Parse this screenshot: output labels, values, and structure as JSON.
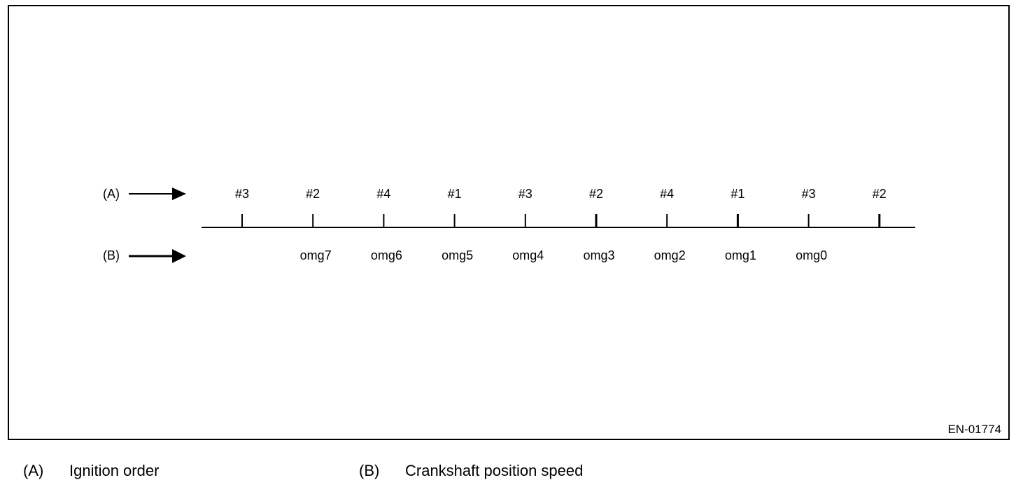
{
  "figure_id": "EN-01774",
  "row_a": {
    "key": "(A)",
    "ignition_cylinders": [
      "#3",
      "#2",
      "#4",
      "#1",
      "#3",
      "#2",
      "#4",
      "#1",
      "#3",
      "#2"
    ]
  },
  "row_b": {
    "key": "(B)",
    "speed_labels": [
      "omg7",
      "omg6",
      "omg5",
      "omg4",
      "omg3",
      "omg2",
      "omg1",
      "omg0"
    ]
  },
  "legend": [
    {
      "key": "(A)",
      "text": "Ignition order"
    },
    {
      "key": "(B)",
      "text": "Crankshaft position speed"
    }
  ]
}
